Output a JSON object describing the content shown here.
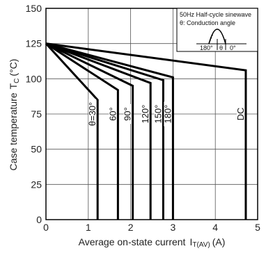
{
  "chart_data": {
    "type": "line",
    "xlabel": "Average on-state current",
    "xlabel_symbol": "I",
    "xlabel_subscript": "T(AV)",
    "xlabel_unit": "(A)",
    "ylabel": "Case temperature",
    "ylabel_symbol": "T",
    "ylabel_subscript": "C",
    "ylabel_unit": "(°C)",
    "xlim": [
      0,
      5
    ],
    "ylim": [
      0,
      150
    ],
    "x_ticks": [
      "0",
      "1",
      "2",
      "3",
      "4",
      "5"
    ],
    "y_ticks": [
      "0",
      "25",
      "50",
      "75",
      "100",
      "125",
      "150"
    ],
    "grid": true,
    "legend": {
      "position": "top-right",
      "line1": "50Hz Half-cycle sinewave",
      "line2": "θ: Conduction angle",
      "label_180": "180°",
      "label_theta": "θ",
      "label_0": "0°"
    },
    "series": [
      {
        "name": "θ=30°",
        "label_y": 75,
        "points": [
          [
            0,
            125
          ],
          [
            1.22,
            85
          ],
          [
            1.22,
            0
          ]
        ]
      },
      {
        "name": "60°",
        "label_y": 75,
        "points": [
          [
            0,
            125
          ],
          [
            1.7,
            92
          ],
          [
            1.7,
            0
          ]
        ]
      },
      {
        "name": "90°",
        "label_y": 75,
        "points": [
          [
            0,
            125
          ],
          [
            2.05,
            95
          ],
          [
            2.05,
            0
          ]
        ]
      },
      {
        "name": "120°",
        "label_y": 75,
        "points": [
          [
            0,
            125
          ],
          [
            2.47,
            97
          ],
          [
            2.47,
            0
          ]
        ]
      },
      {
        "name": "150°",
        "label_y": 75,
        "points": [
          [
            0,
            125
          ],
          [
            2.77,
            99
          ],
          [
            2.77,
            0
          ]
        ]
      },
      {
        "name": "180°",
        "label_y": 75,
        "points": [
          [
            0,
            125
          ],
          [
            3.0,
            101
          ],
          [
            3.0,
            0
          ]
        ]
      },
      {
        "name": "DC",
        "label_y": 75,
        "points": [
          [
            0,
            125
          ],
          [
            4.72,
            106
          ],
          [
            4.72,
            0
          ]
        ]
      }
    ]
  }
}
